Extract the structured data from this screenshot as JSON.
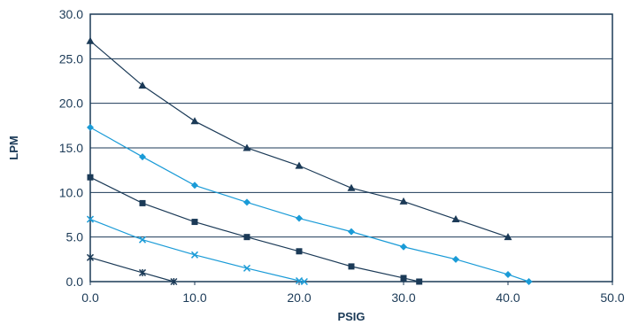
{
  "chart_data": {
    "type": "line",
    "title": "",
    "xlabel": "PSIG",
    "ylabel": "LPM",
    "xlim": [
      0,
      50
    ],
    "ylim": [
      0,
      30
    ],
    "x_ticks": [
      "0.0",
      "10.0",
      "20.0",
      "30.0",
      "40.0",
      "50.0"
    ],
    "y_ticks": [
      "0.0",
      "5.0",
      "10.0",
      "15.0",
      "20.0",
      "25.0",
      "30.0"
    ],
    "grid": "horizontal",
    "legend": "none",
    "series": [
      {
        "marker": "triangle",
        "color": "#1b3a57",
        "points": [
          [
            0,
            27.0
          ],
          [
            5,
            22.0
          ],
          [
            10,
            18.0
          ],
          [
            15,
            15.0
          ],
          [
            20,
            13.0
          ],
          [
            25,
            10.5
          ],
          [
            30,
            9.0
          ],
          [
            35,
            7.0
          ],
          [
            40,
            5.0
          ]
        ]
      },
      {
        "marker": "diamond",
        "color": "#1a9bd7",
        "points": [
          [
            0,
            17.3
          ],
          [
            5,
            14.0
          ],
          [
            10,
            10.8
          ],
          [
            15,
            8.9
          ],
          [
            20,
            7.1
          ],
          [
            25,
            5.6
          ],
          [
            30,
            3.9
          ],
          [
            35,
            2.5
          ],
          [
            40,
            0.8
          ],
          [
            42,
            0.0
          ]
        ]
      },
      {
        "marker": "square",
        "color": "#1b3a57",
        "points": [
          [
            0,
            11.7
          ],
          [
            5,
            8.8
          ],
          [
            10,
            6.7
          ],
          [
            15,
            5.0
          ],
          [
            20,
            3.4
          ],
          [
            25,
            1.7
          ],
          [
            30,
            0.4
          ],
          [
            31.5,
            0.0
          ]
        ]
      },
      {
        "marker": "x",
        "color": "#1a9bd7",
        "points": [
          [
            0,
            7.0
          ],
          [
            5,
            4.7
          ],
          [
            10,
            3.0
          ],
          [
            15,
            1.5
          ],
          [
            20,
            0.1
          ],
          [
            20.5,
            0.0
          ]
        ]
      },
      {
        "marker": "star",
        "color": "#1b3a57",
        "points": [
          [
            0,
            2.7
          ],
          [
            5,
            1.0
          ],
          [
            8,
            0.0
          ]
        ]
      }
    ]
  }
}
